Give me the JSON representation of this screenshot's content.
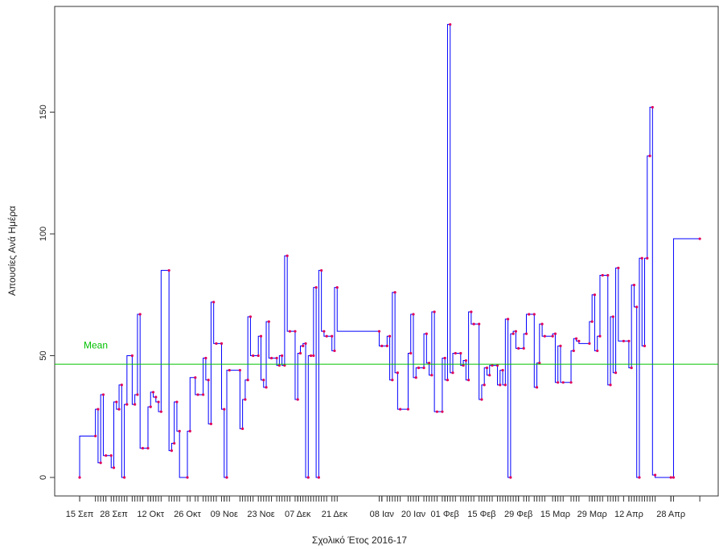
{
  "chart_data": {
    "type": "step",
    "xlabel": "Σχολικό Έτος 2016-17",
    "ylabel": "Απουσίες Ανά Ημέρα",
    "line_color": "#0000ff",
    "point_color": "#e0005a",
    "x": [
      0,
      6,
      7,
      8,
      9,
      10,
      12,
      13,
      14,
      15,
      16,
      17,
      18,
      20,
      21,
      22,
      23,
      24,
      26,
      27,
      28,
      29,
      30,
      31,
      34,
      35,
      36,
      37,
      38,
      41,
      42,
      44,
      45,
      47,
      48,
      49,
      50,
      51,
      52,
      54,
      55,
      56,
      57,
      61,
      62,
      63,
      64,
      65,
      66,
      68,
      69,
      70,
      71,
      72,
      73,
      75,
      76,
      77,
      78,
      79,
      80,
      82,
      83,
      84,
      85,
      86,
      87,
      88,
      89,
      90,
      91,
      92,
      93,
      94,
      96,
      97,
      98,
      114,
      115,
      117,
      118,
      119,
      120,
      121,
      122,
      125,
      126,
      127,
      128,
      129,
      131,
      132,
      133,
      134,
      135,
      136,
      138,
      139,
      140,
      141,
      142,
      143,
      145,
      146,
      147,
      148,
      149,
      150,
      152,
      153,
      154,
      155,
      156,
      157,
      159,
      160,
      161,
      162,
      163,
      164,
      165,
      166,
      167,
      169,
      170,
      171,
      173,
      174,
      175,
      176,
      177,
      180,
      181,
      182,
      183,
      184,
      187,
      188,
      189,
      190,
      194,
      195,
      196,
      197,
      198,
      199,
      201,
      202,
      203,
      204,
      205,
      207,
      209,
      210,
      211,
      212,
      213,
      214,
      215,
      216,
      217,
      218,
      219,
      225,
      226,
      236
    ],
    "values": [
      0,
      17,
      28,
      6,
      34,
      9,
      9,
      4,
      31,
      28,
      38,
      0,
      30,
      50,
      30,
      34,
      67,
      12,
      12,
      29,
      35,
      33,
      31,
      27,
      85,
      11,
      14,
      31,
      19,
      0,
      19,
      41,
      34,
      34,
      49,
      40,
      22,
      72,
      55,
      55,
      28,
      0,
      44,
      44,
      20,
      32,
      40,
      66,
      50,
      50,
      58,
      40,
      37,
      64,
      49,
      49,
      46,
      50,
      46,
      91,
      60,
      60,
      32,
      51,
      54,
      55,
      0,
      50,
      50,
      78,
      0,
      85,
      60,
      58,
      58,
      52,
      78,
      60,
      54,
      54,
      58,
      40,
      76,
      43,
      28,
      28,
      51,
      67,
      41,
      45,
      45,
      59,
      47,
      42,
      68,
      27,
      27,
      49,
      40,
      186,
      43,
      51,
      51,
      46,
      48,
      40,
      68,
      63,
      63,
      32,
      38,
      45,
      42,
      46,
      46,
      38,
      44,
      38,
      65,
      0,
      59,
      60,
      53,
      53,
      59,
      67,
      67,
      37,
      47,
      63,
      58,
      58,
      59,
      39,
      54,
      39,
      39,
      52,
      57,
      56,
      55,
      64,
      75,
      52,
      58,
      83,
      83,
      38,
      66,
      43,
      86,
      56,
      56,
      45,
      79,
      70,
      0,
      90,
      54,
      90,
      132,
      152,
      1,
      0,
      0,
      98
    ],
    "xlim": [
      -9.5,
      243
    ],
    "xticks": [
      {
        "value": 0,
        "label": "15 Σεπ"
      },
      {
        "value": 13,
        "label": "28 Σεπ"
      },
      {
        "value": 27,
        "label": "12 Οκτ"
      },
      {
        "value": 41,
        "label": "26 Οκτ"
      },
      {
        "value": 55,
        "label": "09 Νοε"
      },
      {
        "value": 69,
        "label": "23 Νοε"
      },
      {
        "value": 83,
        "label": "07 Δεκ"
      },
      {
        "value": 97,
        "label": "21 Δεκ"
      },
      {
        "value": 115,
        "label": "08 Ιαν"
      },
      {
        "value": 127,
        "label": "20 Ιαν"
      },
      {
        "value": 139,
        "label": "01 Φεβ"
      },
      {
        "value": 153,
        "label": "15 Φεβ"
      },
      {
        "value": 167,
        "label": "29 Φεβ"
      },
      {
        "value": 181,
        "label": "15 Μαρ"
      },
      {
        "value": 195,
        "label": "29 Μαρ"
      },
      {
        "value": 209,
        "label": "12 Απρ"
      },
      {
        "value": 225,
        "label": "28 Απρ"
      }
    ],
    "ylim": [
      -7.6,
      193.4
    ],
    "yticks": [
      0,
      50,
      100,
      150
    ],
    "mean_line": {
      "value": 46.5,
      "label": "Mean",
      "color": "#00c000"
    }
  }
}
